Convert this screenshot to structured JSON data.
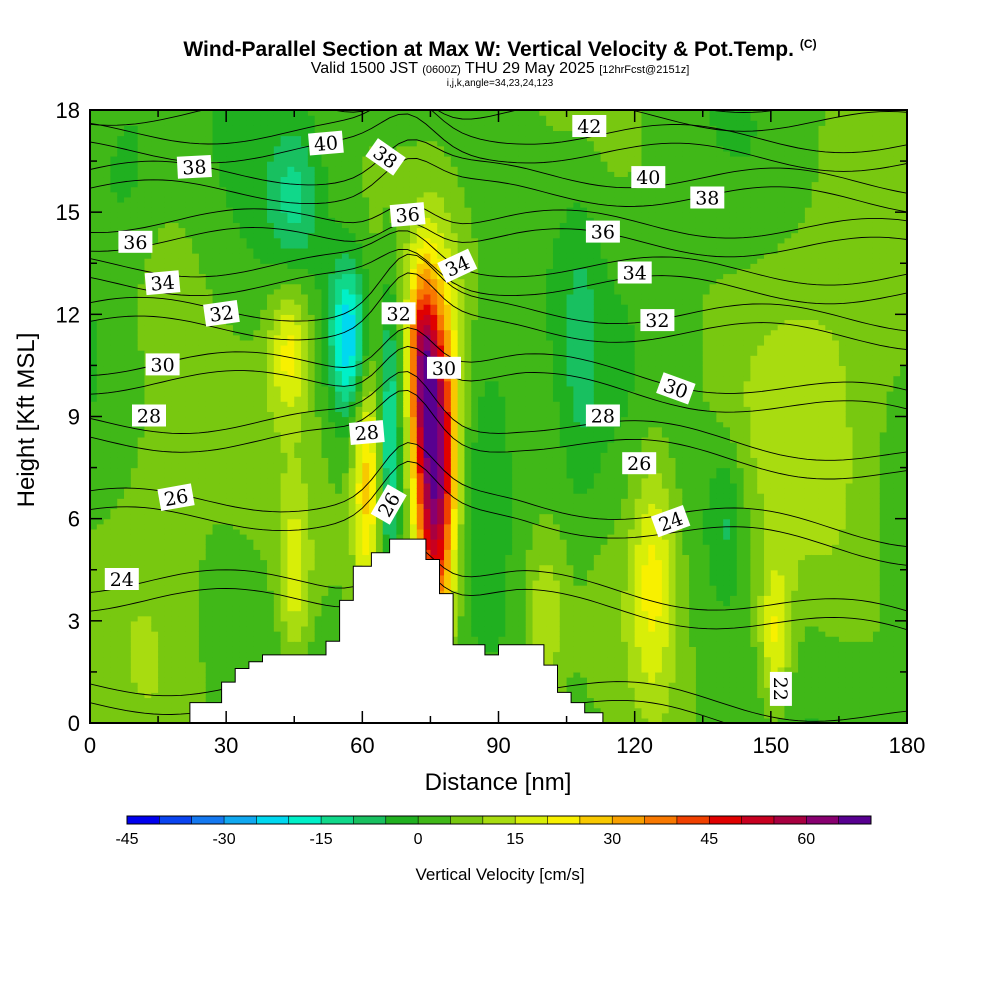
{
  "title": {
    "main": "Wind-Parallel Section at Max W: Vertical Velocity & Pot.Temp.",
    "copyright": "(C)",
    "valid_prefix": "Valid 1500 JST",
    "valid_utc": "(0600Z)",
    "valid_suffix": "THU 29 May 2025",
    "forecast": "[12hrFcst@2151z]",
    "indices": "i,j,k,angle=34,23,24,123"
  },
  "chart_data": {
    "type": "heatmap",
    "description_fields": "filled contours of vertical velocity with potential temperature contour lines over terrain",
    "xlabel": "Distance [nm]",
    "ylabel": "Height [Kft MSL]",
    "xlim": [
      0,
      180
    ],
    "ylim": [
      0,
      18
    ],
    "x_ticks": [
      0,
      30,
      60,
      90,
      120,
      150,
      180
    ],
    "y_ticks": [
      0,
      3,
      6,
      9,
      12,
      15,
      18
    ],
    "colorbar": {
      "label": "Vertical Velocity [cm/s]",
      "min": -45,
      "max": 70,
      "step": 5,
      "tick_values": [
        -45,
        -30,
        -15,
        0,
        15,
        30,
        45,
        60
      ],
      "colors": [
        "#0000ee",
        "#0a44f0",
        "#1478f0",
        "#10a8f0",
        "#00d8f0",
        "#00f0c8",
        "#10d88a",
        "#18c060",
        "#20b020",
        "#40b818",
        "#78c810",
        "#a8dc10",
        "#d8ee08",
        "#f8f000",
        "#f8c800",
        "#f8a000",
        "#f87800",
        "#f04000",
        "#e00000",
        "#c80020",
        "#a80040",
        "#880070",
        "#580090"
      ]
    },
    "terrain_profile": {
      "x": [
        0,
        22,
        22,
        29,
        29,
        32,
        32,
        35,
        35,
        38,
        38,
        52,
        52,
        55,
        55,
        58,
        58,
        62,
        62,
        66,
        66,
        74,
        74,
        77,
        77,
        80,
        80,
        87,
        87,
        90,
        90,
        100,
        100,
        103,
        103,
        106,
        106,
        109,
        109,
        113,
        113,
        180
      ],
      "y": [
        0,
        0,
        0.6,
        0.6,
        1.2,
        1.2,
        1.6,
        1.6,
        1.8,
        1.8,
        2.0,
        2.0,
        2.4,
        2.4,
        3.6,
        3.6,
        4.6,
        4.6,
        5.0,
        5.0,
        5.4,
        5.4,
        4.8,
        4.8,
        3.8,
        3.8,
        2.3,
        2.3,
        2.0,
        2.0,
        2.3,
        2.3,
        1.7,
        1.7,
        0.9,
        0.9,
        0.6,
        0.6,
        0.3,
        0.3,
        0,
        0
      ]
    },
    "vertical_velocity_features": [
      {
        "x": 76,
        "y": 7.5,
        "sx": 3.2,
        "sy": 3.4,
        "w": 68
      },
      {
        "x": 73,
        "y": 10.8,
        "sx": 2.0,
        "sy": 1.8,
        "w": 30
      },
      {
        "x": 61,
        "y": 7.2,
        "sx": 2.2,
        "sy": 2.6,
        "w": 24
      },
      {
        "x": 66,
        "y": 8.5,
        "sx": 1.5,
        "sy": 3.0,
        "w": -18
      },
      {
        "x": 57,
        "y": 11.3,
        "sx": 3.0,
        "sy": 1.6,
        "w": -28
      },
      {
        "x": 44,
        "y": 11.0,
        "sx": 3.2,
        "sy": 1.4,
        "w": 18
      },
      {
        "x": 45,
        "y": 4.2,
        "sx": 2.5,
        "sy": 1.8,
        "w": 14
      },
      {
        "x": 124,
        "y": 4.5,
        "sx": 3.5,
        "sy": 2.6,
        "w": 17
      },
      {
        "x": 151,
        "y": 2.5,
        "sx": 2.6,
        "sy": 1.6,
        "w": 18
      },
      {
        "x": 100,
        "y": 3.0,
        "sx": 3.0,
        "sy": 1.5,
        "w": 12
      },
      {
        "x": 140,
        "y": 6.0,
        "sx": 3.0,
        "sy": 1.6,
        "w": -10
      },
      {
        "x": 108,
        "y": 10.5,
        "sx": 3.0,
        "sy": 3.5,
        "w": -7
      },
      {
        "x": 15,
        "y": 8.0,
        "sx": 8.0,
        "sy": 6.0,
        "w": 6
      },
      {
        "x": 160,
        "y": 10.0,
        "sx": 12.0,
        "sy": 5.0,
        "w": 8
      },
      {
        "x": 88,
        "y": 8.5,
        "sx": 4.0,
        "sy": 2.5,
        "w": -6
      },
      {
        "x": 45,
        "y": 15.5,
        "sx": 4.0,
        "sy": 1.5,
        "w": -12
      },
      {
        "x": 8,
        "y": 16.5,
        "sx": 6.0,
        "sy": 2.0,
        "w": -8
      }
    ],
    "theta_contour_levels": [
      22,
      24,
      26,
      28,
      30,
      32,
      34,
      36,
      38,
      40,
      42
    ],
    "theta_contour_labels": [
      {
        "text": "40",
        "x": 52,
        "y": 17.0,
        "rot": -5
      },
      {
        "text": "42",
        "x": 110,
        "y": 17.5,
        "rot": 0
      },
      {
        "text": "38",
        "x": 23,
        "y": 16.3,
        "rot": -3
      },
      {
        "text": "38",
        "x": 65,
        "y": 16.6,
        "rot": 35
      },
      {
        "text": "40",
        "x": 123,
        "y": 16.0,
        "rot": 0
      },
      {
        "text": "36",
        "x": 70,
        "y": 14.9,
        "rot": -5
      },
      {
        "text": "38",
        "x": 136,
        "y": 15.4,
        "rot": 0
      },
      {
        "text": "36",
        "x": 10,
        "y": 14.1,
        "rot": 0
      },
      {
        "text": "36",
        "x": 113,
        "y": 14.4,
        "rot": 0
      },
      {
        "text": "34",
        "x": 81,
        "y": 13.4,
        "rot": -25
      },
      {
        "text": "34",
        "x": 16,
        "y": 12.9,
        "rot": -5
      },
      {
        "text": "34",
        "x": 120,
        "y": 13.2,
        "rot": 0
      },
      {
        "text": "32",
        "x": 29,
        "y": 12.0,
        "rot": -8
      },
      {
        "text": "32",
        "x": 68,
        "y": 12.0,
        "rot": 0
      },
      {
        "text": "32",
        "x": 125,
        "y": 11.8,
        "rot": 0
      },
      {
        "text": "30",
        "x": 16,
        "y": 10.5,
        "rot": 0
      },
      {
        "text": "30",
        "x": 78,
        "y": 10.4,
        "rot": 0
      },
      {
        "text": "30",
        "x": 129,
        "y": 9.8,
        "rot": 20
      },
      {
        "text": "28",
        "x": 13,
        "y": 9.0,
        "rot": 0
      },
      {
        "text": "28",
        "x": 61,
        "y": 8.5,
        "rot": -5
      },
      {
        "text": "28",
        "x": 113,
        "y": 9.0,
        "rot": 0
      },
      {
        "text": "26",
        "x": 121,
        "y": 7.6,
        "rot": 0
      },
      {
        "text": "26",
        "x": 19,
        "y": 6.6,
        "rot": -10
      },
      {
        "text": "26",
        "x": 66,
        "y": 6.4,
        "rot": -60
      },
      {
        "text": "24",
        "x": 128,
        "y": 5.9,
        "rot": -20
      },
      {
        "text": "24",
        "x": 7,
        "y": 4.2,
        "rot": 0
      },
      {
        "text": "22",
        "x": 152,
        "y": 1.0,
        "rot": 90
      }
    ]
  }
}
